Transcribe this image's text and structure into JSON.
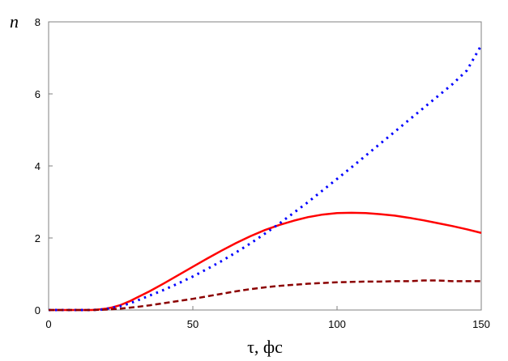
{
  "chart_data": {
    "type": "line",
    "xlabel": "τ, фс",
    "ylabel": "n",
    "xlim": [
      0,
      150
    ],
    "ylim": [
      0,
      8
    ],
    "x_ticks": [
      0,
      50,
      100,
      150
    ],
    "y_ticks": [
      0,
      2,
      4,
      6,
      8
    ],
    "grid": false,
    "legend": "none",
    "series": [
      {
        "style": "solid",
        "color": "#ff0000",
        "x": [
          0,
          10,
          15,
          18,
          20,
          22,
          25,
          28,
          30,
          35,
          40,
          45,
          50,
          55,
          60,
          65,
          70,
          75,
          80,
          85,
          90,
          95,
          100,
          105,
          110,
          115,
          120,
          125,
          130,
          135,
          140,
          145,
          150
        ],
        "y": [
          0,
          0,
          0,
          0.02,
          0.04,
          0.07,
          0.14,
          0.24,
          0.32,
          0.52,
          0.74,
          0.97,
          1.2,
          1.43,
          1.65,
          1.86,
          2.05,
          2.22,
          2.36,
          2.48,
          2.58,
          2.65,
          2.69,
          2.7,
          2.69,
          2.66,
          2.62,
          2.56,
          2.49,
          2.41,
          2.33,
          2.24,
          2.14
        ]
      },
      {
        "style": "dotted",
        "color": "#0000ff",
        "x": [
          0,
          10,
          15,
          18,
          20,
          22,
          25,
          28,
          30,
          35,
          40,
          45,
          50,
          55,
          60,
          65,
          70,
          75,
          80,
          85,
          90,
          95,
          100,
          105,
          110,
          115,
          120,
          125,
          130,
          135,
          140,
          145,
          150
        ],
        "y": [
          0,
          0,
          0,
          0.01,
          0.03,
          0.06,
          0.11,
          0.18,
          0.24,
          0.4,
          0.56,
          0.74,
          0.93,
          1.14,
          1.36,
          1.6,
          1.85,
          2.12,
          2.4,
          2.7,
          3.0,
          3.32,
          3.64,
          3.96,
          4.29,
          4.62,
          4.95,
          5.28,
          5.61,
          5.94,
          6.27,
          6.65,
          7.35
        ]
      },
      {
        "style": "dashed",
        "color": "#8b0000",
        "x": [
          0,
          10,
          15,
          20,
          25,
          30,
          35,
          40,
          45,
          50,
          55,
          60,
          65,
          70,
          75,
          80,
          85,
          90,
          95,
          100,
          105,
          110,
          115,
          120,
          125,
          130,
          135,
          140,
          145,
          150
        ],
        "y": [
          0,
          0,
          0,
          0.01,
          0.04,
          0.08,
          0.13,
          0.19,
          0.25,
          0.31,
          0.38,
          0.45,
          0.52,
          0.58,
          0.63,
          0.67,
          0.7,
          0.73,
          0.75,
          0.77,
          0.78,
          0.79,
          0.79,
          0.8,
          0.8,
          0.82,
          0.82,
          0.8,
          0.8,
          0.8
        ]
      }
    ]
  }
}
